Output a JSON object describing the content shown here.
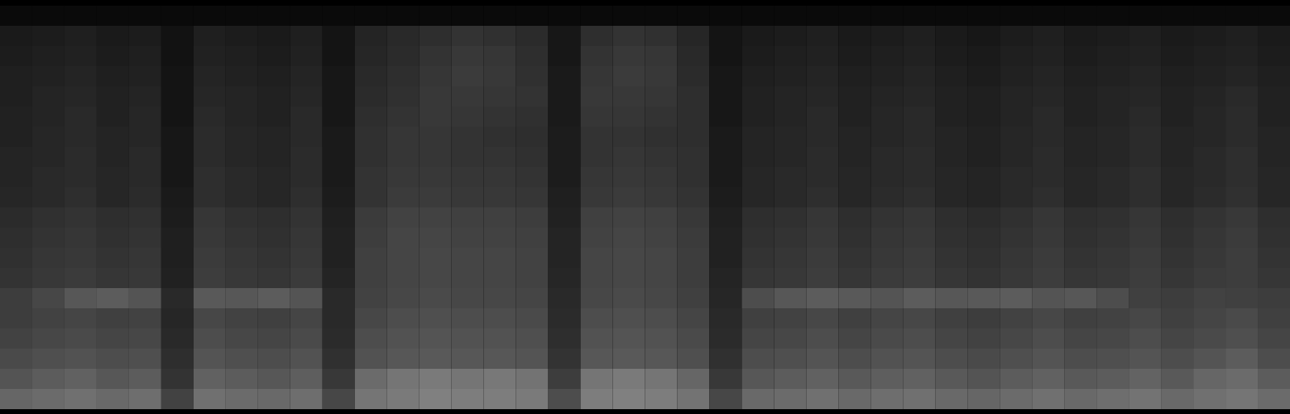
{
  "chart_data": {
    "type": "heatmap",
    "tick_labels": false,
    "zlim": [
      0,
      100
    ],
    "cells": [
      [
        4,
        4,
        4,
        4,
        4,
        4,
        4,
        4,
        4,
        4,
        4,
        4,
        4,
        4,
        4,
        4,
        4,
        4,
        4,
        4,
        4,
        4,
        4,
        4,
        4,
        4,
        4,
        4,
        4,
        4,
        4,
        4,
        4,
        4,
        4,
        4,
        4,
        4,
        4,
        4
      ],
      [
        10,
        11,
        12,
        10,
        11,
        7,
        12,
        11,
        10,
        12,
        8,
        14,
        16,
        18,
        20,
        19,
        17,
        9,
        18,
        20,
        19,
        15,
        8,
        10,
        11,
        12,
        10,
        11,
        12,
        10,
        9,
        11,
        12,
        10,
        11,
        12,
        10,
        11,
        12,
        10
      ],
      [
        11,
        12,
        13,
        11,
        12,
        7,
        13,
        12,
        11,
        13,
        8,
        15,
        17,
        20,
        22,
        21,
        18,
        9,
        20,
        22,
        21,
        16,
        8,
        11,
        12,
        13,
        11,
        12,
        13,
        11,
        10,
        12,
        13,
        11,
        12,
        13,
        11,
        12,
        13,
        11
      ],
      [
        12,
        13,
        14,
        12,
        13,
        8,
        14,
        13,
        12,
        14,
        9,
        16,
        18,
        21,
        23,
        22,
        19,
        10,
        21,
        23,
        22,
        17,
        9,
        12,
        13,
        14,
        12,
        13,
        14,
        12,
        11,
        13,
        14,
        12,
        13,
        14,
        12,
        13,
        14,
        12
      ],
      [
        12,
        14,
        15,
        13,
        14,
        8,
        15,
        14,
        13,
        15,
        9,
        17,
        19,
        22,
        22,
        21,
        20,
        10,
        22,
        22,
        21,
        18,
        9,
        13,
        14,
        15,
        13,
        14,
        15,
        13,
        12,
        14,
        15,
        13,
        14,
        15,
        13,
        14,
        16,
        13
      ],
      [
        13,
        14,
        16,
        13,
        15,
        8,
        16,
        14,
        13,
        16,
        9,
        18,
        20,
        22,
        21,
        20,
        19,
        10,
        21,
        21,
        20,
        18,
        9,
        13,
        14,
        16,
        13,
        15,
        16,
        13,
        12,
        14,
        16,
        13,
        14,
        16,
        13,
        15,
        17,
        13
      ],
      [
        13,
        15,
        16,
        14,
        15,
        9,
        17,
        15,
        14,
        16,
        10,
        19,
        21,
        21,
        20,
        19,
        18,
        11,
        20,
        20,
        19,
        18,
        10,
        14,
        15,
        16,
        14,
        15,
        16,
        14,
        13,
        15,
        16,
        14,
        15,
        17,
        14,
        15,
        17,
        14
      ],
      [
        14,
        15,
        17,
        14,
        16,
        9,
        17,
        15,
        14,
        17,
        10,
        19,
        21,
        21,
        20,
        20,
        19,
        11,
        20,
        21,
        20,
        19,
        10,
        14,
        15,
        17,
        14,
        16,
        17,
        14,
        13,
        15,
        17,
        14,
        15,
        17,
        14,
        16,
        18,
        14
      ],
      [
        14,
        16,
        17,
        15,
        16,
        9,
        18,
        16,
        15,
        17,
        10,
        20,
        22,
        22,
        21,
        21,
        20,
        11,
        21,
        22,
        21,
        19,
        10,
        15,
        16,
        17,
        15,
        16,
        17,
        15,
        14,
        16,
        17,
        15,
        16,
        18,
        15,
        16,
        18,
        15
      ],
      [
        15,
        16,
        18,
        15,
        17,
        10,
        18,
        16,
        15,
        18,
        11,
        20,
        23,
        23,
        22,
        22,
        21,
        12,
        22,
        23,
        22,
        20,
        11,
        15,
        16,
        18,
        15,
        17,
        18,
        15,
        14,
        16,
        18,
        15,
        16,
        18,
        15,
        17,
        19,
        15
      ],
      [
        17,
        19,
        20,
        18,
        19,
        11,
        21,
        19,
        18,
        20,
        12,
        23,
        26,
        26,
        25,
        25,
        24,
        13,
        25,
        26,
        25,
        22,
        12,
        18,
        19,
        21,
        18,
        20,
        21,
        18,
        17,
        19,
        21,
        18,
        19,
        21,
        18,
        20,
        22,
        18
      ],
      [
        18,
        20,
        21,
        19,
        20,
        12,
        22,
        20,
        19,
        21,
        13,
        24,
        27,
        27,
        26,
        26,
        25,
        14,
        26,
        27,
        26,
        23,
        13,
        19,
        20,
        22,
        19,
        21,
        22,
        19,
        18,
        20,
        22,
        19,
        20,
        22,
        19,
        21,
        23,
        19
      ],
      [
        19,
        21,
        22,
        20,
        21,
        12,
        23,
        21,
        20,
        22,
        13,
        25,
        27,
        28,
        27,
        27,
        26,
        14,
        27,
        28,
        27,
        24,
        13,
        20,
        21,
        23,
        20,
        22,
        23,
        20,
        19,
        21,
        23,
        20,
        21,
        23,
        20,
        22,
        24,
        20
      ],
      [
        20,
        22,
        23,
        21,
        22,
        13,
        24,
        22,
        21,
        23,
        14,
        25,
        27,
        28,
        27,
        27,
        26,
        15,
        27,
        28,
        27,
        24,
        14,
        21,
        22,
        24,
        21,
        23,
        24,
        21,
        20,
        22,
        24,
        21,
        22,
        24,
        21,
        23,
        24,
        21
      ],
      [
        24,
        28,
        34,
        36,
        33,
        16,
        35,
        34,
        36,
        33,
        16,
        26,
        28,
        29,
        28,
        28,
        27,
        16,
        28,
        29,
        28,
        25,
        15,
        30,
        34,
        36,
        35,
        33,
        36,
        34,
        35,
        36,
        33,
        34,
        30,
        25,
        24,
        26,
        25,
        24
      ],
      [
        24,
        26,
        27,
        25,
        26,
        15,
        28,
        26,
        25,
        27,
        16,
        28,
        30,
        31,
        30,
        30,
        29,
        17,
        30,
        31,
        30,
        27,
        16,
        25,
        26,
        28,
        25,
        27,
        28,
        25,
        24,
        26,
        28,
        25,
        26,
        28,
        25,
        27,
        29,
        25
      ],
      [
        26,
        28,
        29,
        27,
        28,
        16,
        30,
        28,
        27,
        29,
        17,
        30,
        32,
        33,
        32,
        32,
        31,
        18,
        32,
        33,
        32,
        29,
        17,
        27,
        28,
        30,
        27,
        29,
        30,
        27,
        26,
        28,
        30,
        27,
        28,
        30,
        27,
        29,
        31,
        27
      ],
      [
        29,
        31,
        32,
        30,
        31,
        18,
        33,
        31,
        30,
        32,
        19,
        32,
        34,
        35,
        34,
        34,
        33,
        20,
        34,
        35,
        34,
        31,
        19,
        30,
        31,
        33,
        30,
        32,
        33,
        30,
        29,
        31,
        33,
        30,
        31,
        33,
        30,
        33,
        36,
        30
      ],
      [
        33,
        36,
        38,
        34,
        36,
        20,
        38,
        36,
        34,
        37,
        22,
        42,
        46,
        48,
        46,
        47,
        45,
        24,
        46,
        48,
        46,
        40,
        22,
        34,
        36,
        38,
        35,
        37,
        38,
        35,
        33,
        36,
        38,
        35,
        36,
        39,
        35,
        40,
        42,
        36
      ],
      [
        40,
        42,
        44,
        41,
        43,
        26,
        44,
        42,
        41,
        43,
        28,
        46,
        48,
        50,
        49,
        49,
        48,
        30,
        49,
        50,
        49,
        45,
        28,
        41,
        42,
        44,
        41,
        43,
        44,
        41,
        40,
        42,
        44,
        41,
        43,
        45,
        41,
        44,
        46,
        42
      ]
    ]
  }
}
